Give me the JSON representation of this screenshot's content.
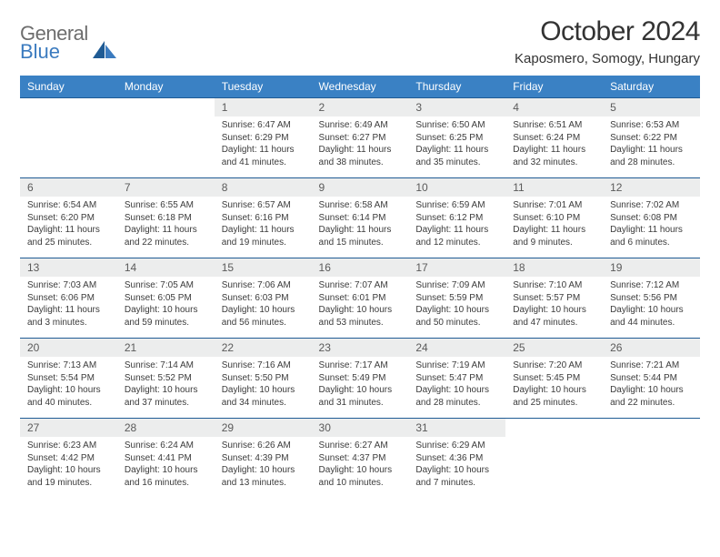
{
  "brand": {
    "part1": "General",
    "part2": "Blue"
  },
  "title": "October 2024",
  "location": "Kaposmero, Somogy, Hungary",
  "colors": {
    "header_bg": "#3a81c4",
    "header_text": "#ffffff",
    "rule": "#1f5b94",
    "daynum_bg": "#eceded",
    "text": "#333333",
    "brand_gray": "#6d6d6d",
    "brand_blue": "#3b7bbf"
  },
  "weekdays": [
    "Sunday",
    "Monday",
    "Tuesday",
    "Wednesday",
    "Thursday",
    "Friday",
    "Saturday"
  ],
  "first_weekday_index": 2,
  "days": [
    {
      "n": "1",
      "sunrise": "Sunrise: 6:47 AM",
      "sunset": "Sunset: 6:29 PM",
      "daylight": "Daylight: 11 hours and 41 minutes."
    },
    {
      "n": "2",
      "sunrise": "Sunrise: 6:49 AM",
      "sunset": "Sunset: 6:27 PM",
      "daylight": "Daylight: 11 hours and 38 minutes."
    },
    {
      "n": "3",
      "sunrise": "Sunrise: 6:50 AM",
      "sunset": "Sunset: 6:25 PM",
      "daylight": "Daylight: 11 hours and 35 minutes."
    },
    {
      "n": "4",
      "sunrise": "Sunrise: 6:51 AM",
      "sunset": "Sunset: 6:24 PM",
      "daylight": "Daylight: 11 hours and 32 minutes."
    },
    {
      "n": "5",
      "sunrise": "Sunrise: 6:53 AM",
      "sunset": "Sunset: 6:22 PM",
      "daylight": "Daylight: 11 hours and 28 minutes."
    },
    {
      "n": "6",
      "sunrise": "Sunrise: 6:54 AM",
      "sunset": "Sunset: 6:20 PM",
      "daylight": "Daylight: 11 hours and 25 minutes."
    },
    {
      "n": "7",
      "sunrise": "Sunrise: 6:55 AM",
      "sunset": "Sunset: 6:18 PM",
      "daylight": "Daylight: 11 hours and 22 minutes."
    },
    {
      "n": "8",
      "sunrise": "Sunrise: 6:57 AM",
      "sunset": "Sunset: 6:16 PM",
      "daylight": "Daylight: 11 hours and 19 minutes."
    },
    {
      "n": "9",
      "sunrise": "Sunrise: 6:58 AM",
      "sunset": "Sunset: 6:14 PM",
      "daylight": "Daylight: 11 hours and 15 minutes."
    },
    {
      "n": "10",
      "sunrise": "Sunrise: 6:59 AM",
      "sunset": "Sunset: 6:12 PM",
      "daylight": "Daylight: 11 hours and 12 minutes."
    },
    {
      "n": "11",
      "sunrise": "Sunrise: 7:01 AM",
      "sunset": "Sunset: 6:10 PM",
      "daylight": "Daylight: 11 hours and 9 minutes."
    },
    {
      "n": "12",
      "sunrise": "Sunrise: 7:02 AM",
      "sunset": "Sunset: 6:08 PM",
      "daylight": "Daylight: 11 hours and 6 minutes."
    },
    {
      "n": "13",
      "sunrise": "Sunrise: 7:03 AM",
      "sunset": "Sunset: 6:06 PM",
      "daylight": "Daylight: 11 hours and 3 minutes."
    },
    {
      "n": "14",
      "sunrise": "Sunrise: 7:05 AM",
      "sunset": "Sunset: 6:05 PM",
      "daylight": "Daylight: 10 hours and 59 minutes."
    },
    {
      "n": "15",
      "sunrise": "Sunrise: 7:06 AM",
      "sunset": "Sunset: 6:03 PM",
      "daylight": "Daylight: 10 hours and 56 minutes."
    },
    {
      "n": "16",
      "sunrise": "Sunrise: 7:07 AM",
      "sunset": "Sunset: 6:01 PM",
      "daylight": "Daylight: 10 hours and 53 minutes."
    },
    {
      "n": "17",
      "sunrise": "Sunrise: 7:09 AM",
      "sunset": "Sunset: 5:59 PM",
      "daylight": "Daylight: 10 hours and 50 minutes."
    },
    {
      "n": "18",
      "sunrise": "Sunrise: 7:10 AM",
      "sunset": "Sunset: 5:57 PM",
      "daylight": "Daylight: 10 hours and 47 minutes."
    },
    {
      "n": "19",
      "sunrise": "Sunrise: 7:12 AM",
      "sunset": "Sunset: 5:56 PM",
      "daylight": "Daylight: 10 hours and 44 minutes."
    },
    {
      "n": "20",
      "sunrise": "Sunrise: 7:13 AM",
      "sunset": "Sunset: 5:54 PM",
      "daylight": "Daylight: 10 hours and 40 minutes."
    },
    {
      "n": "21",
      "sunrise": "Sunrise: 7:14 AM",
      "sunset": "Sunset: 5:52 PM",
      "daylight": "Daylight: 10 hours and 37 minutes."
    },
    {
      "n": "22",
      "sunrise": "Sunrise: 7:16 AM",
      "sunset": "Sunset: 5:50 PM",
      "daylight": "Daylight: 10 hours and 34 minutes."
    },
    {
      "n": "23",
      "sunrise": "Sunrise: 7:17 AM",
      "sunset": "Sunset: 5:49 PM",
      "daylight": "Daylight: 10 hours and 31 minutes."
    },
    {
      "n": "24",
      "sunrise": "Sunrise: 7:19 AM",
      "sunset": "Sunset: 5:47 PM",
      "daylight": "Daylight: 10 hours and 28 minutes."
    },
    {
      "n": "25",
      "sunrise": "Sunrise: 7:20 AM",
      "sunset": "Sunset: 5:45 PM",
      "daylight": "Daylight: 10 hours and 25 minutes."
    },
    {
      "n": "26",
      "sunrise": "Sunrise: 7:21 AM",
      "sunset": "Sunset: 5:44 PM",
      "daylight": "Daylight: 10 hours and 22 minutes."
    },
    {
      "n": "27",
      "sunrise": "Sunrise: 6:23 AM",
      "sunset": "Sunset: 4:42 PM",
      "daylight": "Daylight: 10 hours and 19 minutes."
    },
    {
      "n": "28",
      "sunrise": "Sunrise: 6:24 AM",
      "sunset": "Sunset: 4:41 PM",
      "daylight": "Daylight: 10 hours and 16 minutes."
    },
    {
      "n": "29",
      "sunrise": "Sunrise: 6:26 AM",
      "sunset": "Sunset: 4:39 PM",
      "daylight": "Daylight: 10 hours and 13 minutes."
    },
    {
      "n": "30",
      "sunrise": "Sunrise: 6:27 AM",
      "sunset": "Sunset: 4:37 PM",
      "daylight": "Daylight: 10 hours and 10 minutes."
    },
    {
      "n": "31",
      "sunrise": "Sunrise: 6:29 AM",
      "sunset": "Sunset: 4:36 PM",
      "daylight": "Daylight: 10 hours and 7 minutes."
    }
  ]
}
